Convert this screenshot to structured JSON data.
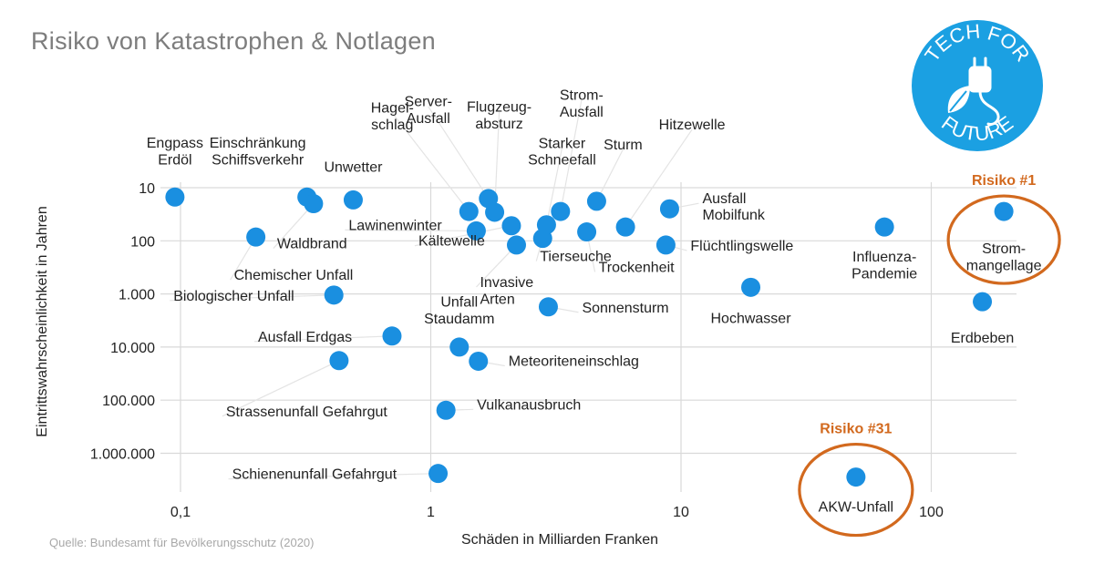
{
  "title": "Risiko von Katastrophen & Notlagen",
  "source": "Quelle: Bundesamt für Bevölkerungsschutz (2020)",
  "logo": {
    "text_top": "TECH FOR",
    "text_bottom": "FUTURE",
    "color": "#1ba0e2"
  },
  "colors": {
    "point": "#1a8fe0",
    "highlight": "#d2691e",
    "grid": "#d9d9d9",
    "label": "#222222",
    "leader": "#e4e4e4"
  },
  "chart_data": {
    "type": "scatter",
    "title": "Risiko von Katastrophen & Notlagen",
    "xlabel": "Schäden in Milliarden Franken",
    "ylabel": "Eintrittswahrscheinlichkeit in Jahren",
    "x_scale": "log",
    "y_scale": "log",
    "y_inverted": true,
    "grid": true,
    "xlim": [
      0.07,
      200
    ],
    "ylim": [
      4,
      5000000
    ],
    "x_ticks": [
      {
        "value": 0.1,
        "label": "0,1"
      },
      {
        "value": 1,
        "label": "1"
      },
      {
        "value": 10,
        "label": "10"
      },
      {
        "value": 100,
        "label": "100"
      }
    ],
    "y_ticks": [
      {
        "value": 10,
        "label": "10"
      },
      {
        "value": 100,
        "label": "100"
      },
      {
        "value": 1000,
        "label": "1.000"
      },
      {
        "value": 10000,
        "label": "10.000"
      },
      {
        "value": 100000,
        "label": "100.000"
      },
      {
        "value": 1000000,
        "label": "1.000.000"
      }
    ],
    "points": [
      {
        "label": "Engpass\nErdöl",
        "x": 0.095,
        "y": 15
      },
      {
        "label": "Chemischer Unfall",
        "x": 0.2,
        "y": 85
      },
      {
        "label": "Einschränkung\nSchiffsverkehr",
        "x": 0.32,
        "y": 15
      },
      {
        "label": "Waldbrand",
        "x": 0.34,
        "y": 20
      },
      {
        "label": "Unwetter",
        "x": 0.49,
        "y": 17
      },
      {
        "label": "Biologischer Unfall",
        "x": 0.41,
        "y": 1050
      },
      {
        "label": "Ausfall Erdgas",
        "x": 0.7,
        "y": 6200
      },
      {
        "label": "Strassenunfall Gefahrgut",
        "x": 0.43,
        "y": 18000
      },
      {
        "label": "Schienenunfall Gefahrgut",
        "x": 1.07,
        "y": 2400000
      },
      {
        "label": "Vulkanausbruch",
        "x": 1.15,
        "y": 155000
      },
      {
        "label": "Unfall\nStaudamm",
        "x": 1.3,
        "y": 10000
      },
      {
        "label": "Meteoriteneinschlag",
        "x": 1.55,
        "y": 18500
      },
      {
        "label": "Hagel-\nschlag",
        "x": 1.42,
        "y": 28
      },
      {
        "label": "Lawinenwinter",
        "x": 1.52,
        "y": 65
      },
      {
        "label": "Server-\nAusfall",
        "x": 1.7,
        "y": 16
      },
      {
        "label": "Flugzeug-\nabsturz",
        "x": 1.8,
        "y": 29
      },
      {
        "label": "Kältewelle",
        "x": 2.1,
        "y": 52
      },
      {
        "label": "Invasive\nArten",
        "x": 2.2,
        "y": 120
      },
      {
        "label": "Tierseuche",
        "x": 2.8,
        "y": 90
      },
      {
        "label": "Starker\nSchneefall",
        "x": 2.9,
        "y": 50
      },
      {
        "label": "Sonnensturm",
        "x": 2.95,
        "y": 1750
      },
      {
        "label": "Strom-\nAusfall",
        "x": 3.3,
        "y": 28
      },
      {
        "label": "Trockenheit",
        "x": 4.2,
        "y": 68
      },
      {
        "label": "Sturm",
        "x": 4.6,
        "y": 18
      },
      {
        "label": "Hitzewelle",
        "x": 6.0,
        "y": 55
      },
      {
        "label": "Flüchtlingswelle",
        "x": 8.7,
        "y": 120
      },
      {
        "label": "Ausfall\nMobilfunk",
        "x": 9.0,
        "y": 25
      },
      {
        "label": "Hochwasser",
        "x": 19,
        "y": 750
      },
      {
        "label": "AKW-Unfall",
        "x": 50,
        "y": 2800000,
        "highlight": "Risiko #31"
      },
      {
        "label": "Influenza-\nPandemie",
        "x": 65,
        "y": 55
      },
      {
        "label": "Erdbeben",
        "x": 160,
        "y": 1400
      },
      {
        "label": "Strom-\nmangellage",
        "x": 195,
        "y": 28,
        "highlight": "Risiko #1"
      }
    ]
  }
}
